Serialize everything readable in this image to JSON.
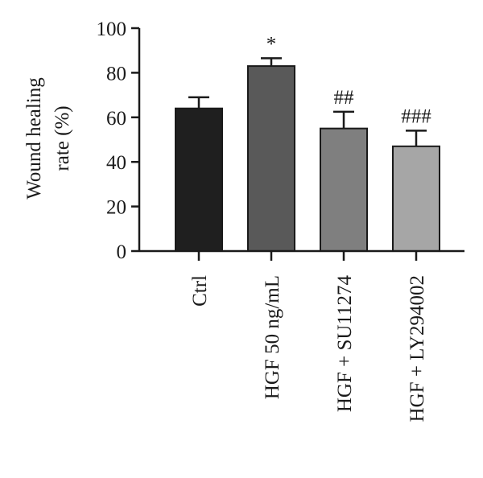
{
  "chart_data": {
    "type": "bar",
    "title": "",
    "xlabel": "",
    "ylabel_lines": [
      "Wound healing",
      "rate (%)"
    ],
    "ylim": [
      0,
      100
    ],
    "yticks": [
      0,
      20,
      40,
      60,
      80,
      100
    ],
    "grid": false,
    "legend": "none",
    "categories": [
      "Ctrl",
      "HGF 50 ng/mL",
      "HGF + SU11274",
      "HGF + LY294002"
    ],
    "values": [
      64,
      83,
      55,
      47
    ],
    "error_upper": [
      69,
      86.5,
      62.5,
      54
    ],
    "annotations": [
      "",
      "*",
      "##",
      "###"
    ],
    "colors": [
      "#1f1f1f",
      "#595959",
      "#7f7f7f",
      "#a6a6a6"
    ]
  }
}
